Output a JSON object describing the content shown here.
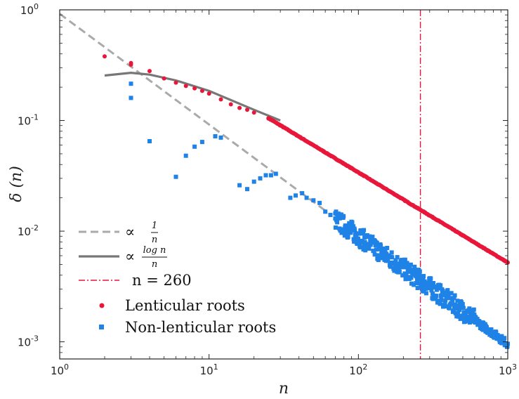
{
  "chart_data": {
    "type": "scatter",
    "xscale": "log",
    "yscale": "log",
    "xlim": [
      1,
      1000
    ],
    "ylim": [
      0.0007,
      1
    ],
    "xlabel": "n",
    "ylabel": "δ (n)",
    "x_ticks": [
      {
        "base": "10",
        "exp": "0"
      },
      {
        "base": "10",
        "exp": "1"
      },
      {
        "base": "10",
        "exp": "2"
      },
      {
        "base": "10",
        "exp": "3"
      }
    ],
    "y_ticks": [
      {
        "base": "10",
        "exp": "0"
      },
      {
        "base": "10",
        "exp": "-1"
      },
      {
        "base": "10",
        "exp": "-2"
      },
      {
        "base": "10",
        "exp": "-3"
      }
    ],
    "legend_placement": "bottom-left",
    "colors": {
      "lenticular": "#e8173a",
      "non_lenticular": "#1f82e6",
      "ref_dashed": "#aaaaaa",
      "ref_solid": "#777777",
      "vline": "#e8173a"
    },
    "reference_curves": [
      {
        "name": "∝ 1/n",
        "style": "dashed",
        "coef": 0.92,
        "form": "1/n",
        "x_range": [
          1,
          60
        ]
      },
      {
        "name": "∝ log n / n",
        "style": "solid",
        "form": "log(n)/n",
        "points": [
          [
            2,
            0.255
          ],
          [
            3,
            0.27
          ],
          [
            4,
            0.26
          ],
          [
            6,
            0.23
          ],
          [
            10,
            0.185
          ],
          [
            20,
            0.125
          ],
          [
            30,
            0.1
          ]
        ]
      }
    ],
    "vertical_line": {
      "x": 260,
      "label": "n = 260"
    },
    "series": [
      {
        "name": "Lenticular roots",
        "marker": "circle",
        "points": [
          [
            2,
            0.38
          ],
          [
            3,
            0.33
          ],
          [
            3,
            0.32
          ],
          [
            4,
            0.28
          ],
          [
            5,
            0.24
          ],
          [
            6,
            0.22
          ],
          [
            7,
            0.205
          ],
          [
            8,
            0.195
          ],
          [
            9,
            0.185
          ],
          [
            10,
            0.175
          ],
          [
            12,
            0.155
          ],
          [
            14,
            0.14
          ],
          [
            16,
            0.13
          ],
          [
            18,
            0.125
          ],
          [
            20,
            0.118
          ],
          [
            25,
            0.105
          ]
        ],
        "trend": {
          "x_start": 25,
          "x_end": 1000,
          "y_start": 0.105,
          "y_end": 0.0052
        }
      },
      {
        "name": "Non-lenticular roots",
        "marker": "square",
        "points": [
          [
            3,
            0.215
          ],
          [
            3,
            0.16
          ],
          [
            4,
            0.065
          ],
          [
            6,
            0.031
          ],
          [
            7,
            0.048
          ],
          [
            8,
            0.058
          ],
          [
            9,
            0.064
          ],
          [
            11,
            0.072
          ],
          [
            12,
            0.07
          ],
          [
            16,
            0.026
          ],
          [
            18,
            0.024
          ],
          [
            20,
            0.028
          ],
          [
            22,
            0.03
          ],
          [
            24,
            0.032
          ],
          [
            26,
            0.032
          ],
          [
            28,
            0.033
          ],
          [
            35,
            0.02
          ],
          [
            38,
            0.021
          ],
          [
            42,
            0.022
          ],
          [
            45,
            0.02
          ],
          [
            50,
            0.019
          ],
          [
            55,
            0.018
          ],
          [
            60,
            0.015
          ],
          [
            65,
            0.014
          ],
          [
            70,
            0.013
          ]
        ],
        "trend": {
          "x_start": 70,
          "x_end": 1000,
          "y_start": 0.0125,
          "y_end": 0.00095
        }
      }
    ],
    "legend": [
      {
        "kind": "dashed",
        "prefix": "∝",
        "num": "1",
        "den": "n"
      },
      {
        "kind": "solid",
        "prefix": "∝",
        "num": "log n",
        "den": "n"
      },
      {
        "kind": "dashdot",
        "label": "n  =  260"
      },
      {
        "kind": "circle",
        "label": "Lenticular roots"
      },
      {
        "kind": "square",
        "label": "Non-lenticular roots"
      }
    ]
  }
}
